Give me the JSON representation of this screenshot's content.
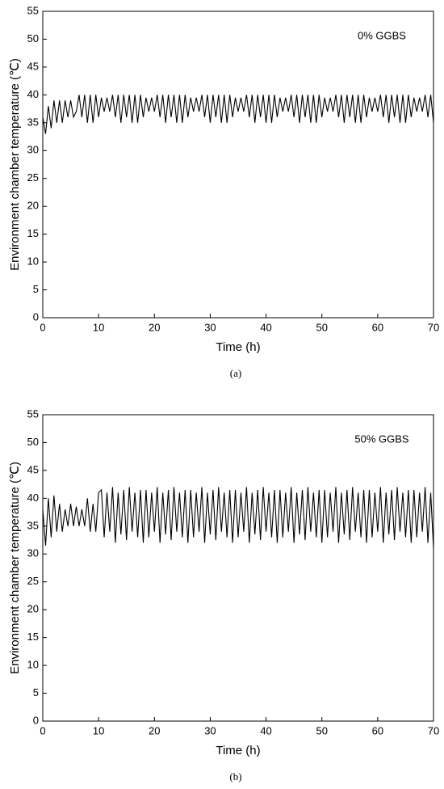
{
  "chart_data": [
    {
      "type": "line",
      "caption": "(a)",
      "annotation": "0% GGBS",
      "xlabel": "Time (h)",
      "ylabel": "Environment chamber temperature (℃)",
      "xlim": [
        0,
        70
      ],
      "xticks": [
        0,
        10,
        20,
        30,
        40,
        50,
        60,
        70
      ],
      "ylim": [
        0,
        55
      ],
      "yticks": [
        0,
        5,
        10,
        15,
        20,
        25,
        30,
        35,
        40,
        45,
        50,
        55
      ],
      "x": [
        0,
        0.5,
        1,
        1.5,
        2,
        2.5,
        3,
        3.5,
        4,
        4.5,
        5,
        5.5,
        6,
        6.5,
        7,
        7.5,
        8,
        8.5,
        9,
        9.5,
        10,
        10.5,
        11,
        11.5,
        12,
        12.5,
        13,
        13.5,
        14,
        14.5,
        15,
        15.5,
        16,
        16.5,
        17,
        17.5,
        18,
        18.5,
        19,
        19.5,
        20,
        20.5,
        21,
        21.5,
        22,
        22.5,
        23,
        23.5,
        24,
        24.5,
        25,
        25.5,
        26,
        26.5,
        27,
        27.5,
        28,
        28.5,
        29,
        29.5,
        30,
        30.5,
        31,
        31.5,
        32,
        32.5,
        33,
        33.5,
        34,
        34.5,
        35,
        35.5,
        36,
        36.5,
        37,
        37.5,
        38,
        38.5,
        39,
        39.5,
        40,
        40.5,
        41,
        41.5,
        42,
        42.5,
        43,
        43.5,
        44,
        44.5,
        45,
        45.5,
        46,
        46.5,
        47,
        47.5,
        48,
        48.5,
        49,
        49.5,
        50,
        50.5,
        51,
        51.5,
        52,
        52.5,
        53,
        53.5,
        54,
        54.5,
        55,
        55.5,
        56,
        56.5,
        57,
        57.5,
        58,
        58.5,
        59,
        59.5,
        60,
        60.5,
        61,
        61.5,
        62,
        62.5,
        63,
        63.5,
        64,
        64.5,
        65,
        65.5,
        66,
        66.5,
        67,
        67.5,
        68,
        68.5,
        69,
        69.5,
        70
      ],
      "series": [
        {
          "color": "#000000",
          "values": [
            36,
            33,
            38,
            34,
            39,
            35,
            39,
            35,
            39,
            36,
            39,
            36,
            37,
            40,
            36,
            40,
            35,
            40,
            35,
            40,
            36,
            39.5,
            37,
            39.5,
            37,
            40,
            36,
            40,
            35,
            40,
            36,
            40,
            35,
            40,
            35,
            40,
            36,
            39.5,
            37,
            39.5,
            37,
            40,
            36,
            40,
            35,
            40,
            36,
            40,
            35,
            40,
            35,
            40,
            36,
            39.5,
            37,
            39.5,
            37,
            40,
            36,
            40,
            35,
            40,
            36,
            40,
            35,
            40,
            35,
            40,
            36,
            39.5,
            37,
            39.5,
            37,
            40,
            36,
            40,
            35,
            40,
            36,
            40,
            35,
            40,
            35,
            40,
            36,
            39.5,
            37,
            39.5,
            37,
            40,
            36,
            40,
            35,
            40,
            36,
            40,
            35,
            40,
            35,
            40,
            36,
            39.5,
            37,
            39.5,
            37,
            40,
            36,
            40,
            35,
            40,
            36,
            40,
            35,
            40,
            35,
            40,
            36,
            39.5,
            37,
            39.5,
            37,
            40,
            36,
            40,
            35,
            40,
            36,
            40,
            35,
            40,
            35,
            40,
            36,
            39.5,
            37,
            39.5,
            37,
            40,
            36,
            40,
            35
          ]
        }
      ]
    },
    {
      "type": "line",
      "caption": "(b)",
      "annotation": "50% GGBS",
      "xlabel": "Time (h)",
      "ylabel": "Environment chamber temperature (℃)",
      "xlim": [
        0,
        70
      ],
      "xticks": [
        0,
        10,
        20,
        30,
        40,
        50,
        60,
        70
      ],
      "ylim": [
        0,
        55
      ],
      "yticks": [
        0,
        5,
        10,
        15,
        20,
        25,
        30,
        35,
        40,
        45,
        50,
        55
      ],
      "x": [
        0,
        0.5,
        1,
        1.5,
        2,
        2.5,
        3,
        3.5,
        4,
        4.5,
        5,
        5.5,
        6,
        6.5,
        7,
        7.5,
        8,
        8.5,
        9,
        9.5,
        10,
        10.5,
        11,
        11.5,
        12,
        12.5,
        13,
        13.5,
        14,
        14.5,
        15,
        15.5,
        16,
        16.5,
        17,
        17.5,
        18,
        18.5,
        19,
        19.5,
        20,
        20.5,
        21,
        21.5,
        22,
        22.5,
        23,
        23.5,
        24,
        24.5,
        25,
        25.5,
        26,
        26.5,
        27,
        27.5,
        28,
        28.5,
        29,
        29.5,
        30,
        30.5,
        31,
        31.5,
        32,
        32.5,
        33,
        33.5,
        34,
        34.5,
        35,
        35.5,
        36,
        36.5,
        37,
        37.5,
        38,
        38.5,
        39,
        39.5,
        40,
        40.5,
        41,
        41.5,
        42,
        42.5,
        43,
        43.5,
        44,
        44.5,
        45,
        45.5,
        46,
        46.5,
        47,
        47.5,
        48,
        48.5,
        49,
        49.5,
        50,
        50.5,
        51,
        51.5,
        52,
        52.5,
        53,
        53.5,
        54,
        54.5,
        55,
        55.5,
        56,
        56.5,
        57,
        57.5,
        58,
        58.5,
        59,
        59.5,
        60,
        60.5,
        61,
        61.5,
        62,
        62.5,
        63,
        63.5,
        64,
        64.5,
        65,
        65.5,
        66,
        66.5,
        67,
        67.5,
        68,
        68.5,
        69,
        69.5,
        70
      ],
      "series": [
        {
          "color": "#000000",
          "values": [
            38,
            31.5,
            40,
            33,
            40.5,
            34,
            39,
            34,
            38,
            35,
            39,
            35,
            38.5,
            35,
            38,
            35,
            40,
            34,
            39,
            34,
            41,
            41.5,
            33,
            41,
            34,
            42,
            32,
            41,
            33.5,
            41.5,
            32.5,
            42,
            34,
            41,
            33,
            41.5,
            32,
            41.5,
            33,
            41,
            34,
            42,
            32,
            41,
            33.5,
            41.5,
            32.5,
            42,
            34,
            41,
            33,
            41.5,
            32,
            41.5,
            33,
            41,
            34,
            42,
            32,
            41,
            33.5,
            41.5,
            32.5,
            42,
            34,
            41,
            33,
            41.5,
            32,
            41.5,
            33,
            41,
            34,
            42,
            32,
            41,
            33.5,
            41.5,
            32.5,
            42,
            34,
            41,
            33,
            41.5,
            32,
            41.5,
            33,
            41,
            34,
            42,
            32,
            41,
            33.5,
            41.5,
            32.5,
            42,
            34,
            41,
            33,
            41.5,
            32,
            41.5,
            33,
            41,
            34,
            42,
            32,
            41,
            33.5,
            41.5,
            32.5,
            42,
            34,
            41,
            33,
            41.5,
            32,
            41.5,
            33,
            41,
            34,
            42,
            32,
            41,
            33.5,
            41.5,
            32.5,
            42,
            34,
            41,
            33,
            41.5,
            32,
            41.5,
            33,
            41,
            34,
            42,
            32,
            41,
            31
          ]
        }
      ]
    }
  ]
}
